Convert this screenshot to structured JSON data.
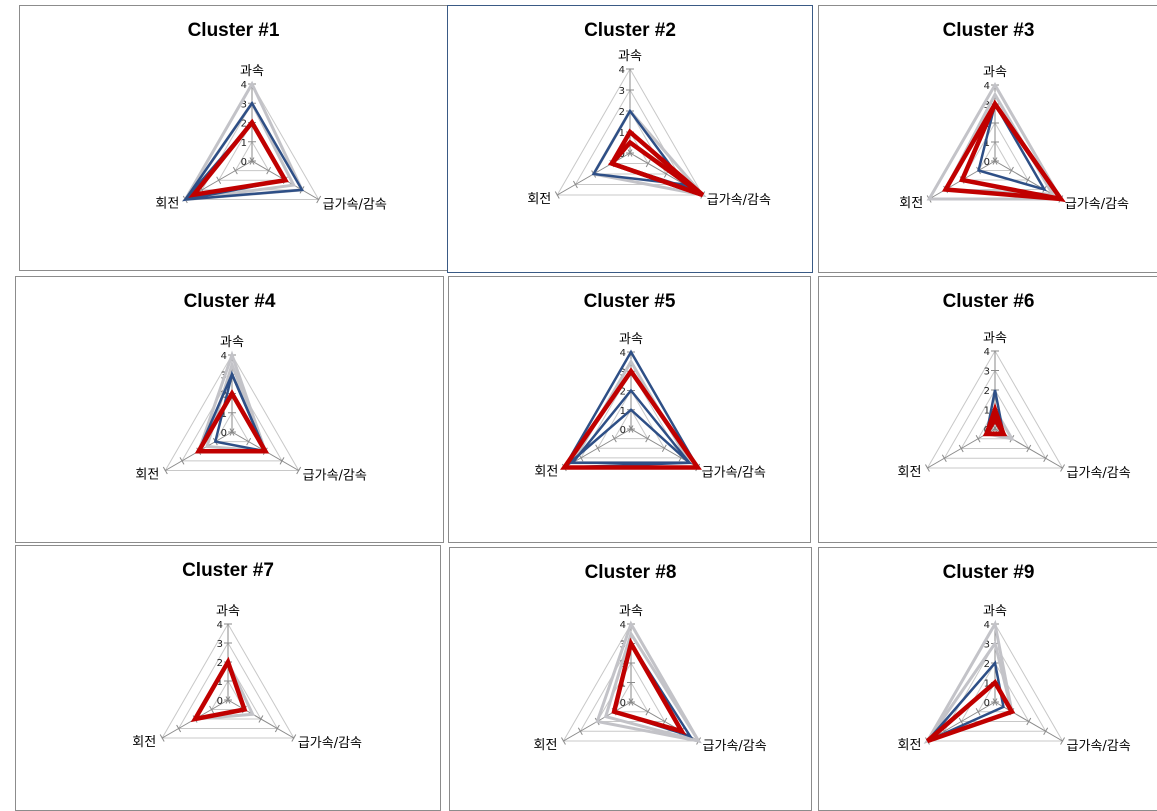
{
  "colors": {
    "gray": "#c3c3c8",
    "blue": "#2e4f86",
    "red": "#c00000"
  },
  "axes": [
    "과속",
    "급가속/감속",
    "회전"
  ],
  "ticks": [
    "0",
    "1",
    "2",
    "3",
    "4"
  ],
  "chart_data": [
    {
      "type": "radar",
      "title": "Cluster #1",
      "categories": [
        "과속",
        "급가속/감속",
        "회전"
      ],
      "range": [
        0,
        4
      ],
      "series": [
        {
          "color": "gray",
          "values": [
            4,
            3,
            4
          ]
        },
        {
          "color": "gray",
          "values": [
            3,
            2.5,
            4
          ]
        },
        {
          "color": "blue",
          "values": [
            3,
            3,
            4
          ]
        },
        {
          "color": "blue",
          "values": [
            2,
            2,
            4
          ]
        },
        {
          "color": "red",
          "values": [
            2,
            2,
            3.5
          ]
        }
      ]
    },
    {
      "type": "radar",
      "title": "Cluster #2",
      "categories": [
        "과속",
        "급가속/감속",
        "회전"
      ],
      "range": [
        0,
        4
      ],
      "series": [
        {
          "color": "gray",
          "values": [
            2,
            4,
            2
          ]
        },
        {
          "color": "gray",
          "values": [
            1,
            3.5,
            1
          ]
        },
        {
          "color": "blue",
          "values": [
            2,
            3,
            2
          ]
        },
        {
          "color": "blue",
          "values": [
            0.5,
            3.5,
            1
          ]
        },
        {
          "color": "red",
          "values": [
            1,
            4,
            1
          ]
        },
        {
          "color": "red",
          "values": [
            0.5,
            4,
            1
          ]
        }
      ]
    },
    {
      "type": "radar",
      "title": "Cluster #3",
      "categories": [
        "과속",
        "급가속/감속",
        "회전"
      ],
      "range": [
        0,
        4
      ],
      "series": [
        {
          "color": "gray",
          "values": [
            4,
            4,
            4
          ]
        },
        {
          "color": "gray",
          "values": [
            3.5,
            3.5,
            3
          ]
        },
        {
          "color": "blue",
          "values": [
            3,
            3,
            1
          ]
        },
        {
          "color": "red",
          "values": [
            3,
            4,
            3
          ]
        },
        {
          "color": "red",
          "values": [
            3,
            4,
            2
          ]
        }
      ]
    },
    {
      "type": "radar",
      "title": "Cluster #4",
      "categories": [
        "과속",
        "급가속/감속",
        "회전"
      ],
      "range": [
        0,
        4
      ],
      "series": [
        {
          "color": "gray",
          "values": [
            4,
            2,
            2
          ]
        },
        {
          "color": "gray",
          "values": [
            3.5,
            2,
            1.5
          ]
        },
        {
          "color": "blue",
          "values": [
            3,
            2,
            1
          ]
        },
        {
          "color": "blue",
          "values": [
            3,
            2,
            2
          ]
        },
        {
          "color": "red",
          "values": [
            2,
            2,
            2
          ]
        }
      ]
    },
    {
      "type": "radar",
      "title": "Cluster #5",
      "categories": [
        "과속",
        "급가속/감속",
        "회전"
      ],
      "range": [
        0,
        4
      ],
      "series": [
        {
          "color": "gray",
          "values": [
            3.5,
            3.5,
            3.5
          ]
        },
        {
          "color": "blue",
          "values": [
            4,
            4,
            4
          ]
        },
        {
          "color": "blue",
          "values": [
            2,
            3.5,
            3.5
          ]
        },
        {
          "color": "blue",
          "values": [
            1,
            3.5,
            4
          ]
        },
        {
          "color": "red",
          "values": [
            3,
            4,
            4
          ]
        }
      ]
    },
    {
      "type": "radar",
      "title": "Cluster #6",
      "categories": [
        "과속",
        "급가속/감속",
        "회전"
      ],
      "range": [
        0,
        4
      ],
      "series": [
        {
          "color": "gray",
          "values": [
            1,
            1,
            0.5
          ]
        },
        {
          "color": "blue",
          "values": [
            2,
            0.5,
            0.5
          ]
        },
        {
          "color": "red",
          "values": [
            1,
            0.5,
            0.5
          ]
        },
        {
          "color": "red",
          "values": [
            0.5,
            0.5,
            0.5
          ]
        }
      ]
    },
    {
      "type": "radar",
      "title": "Cluster #7",
      "categories": [
        "과속",
        "급가속/감속",
        "회전"
      ],
      "range": [
        0,
        4
      ],
      "series": [
        {
          "color": "gray",
          "values": [
            2,
            1.5,
            2
          ]
        },
        {
          "color": "red",
          "values": [
            2,
            1,
            2
          ]
        }
      ]
    },
    {
      "type": "radar",
      "title": "Cluster #8",
      "categories": [
        "과속",
        "급가속/감속",
        "회전"
      ],
      "range": [
        0,
        4
      ],
      "series": [
        {
          "color": "gray",
          "values": [
            4,
            4,
            2
          ]
        },
        {
          "color": "gray",
          "values": [
            3.5,
            4,
            1.5
          ]
        },
        {
          "color": "blue",
          "values": [
            3,
            3.5,
            1
          ]
        },
        {
          "color": "red",
          "values": [
            3,
            3,
            1
          ]
        }
      ]
    },
    {
      "type": "radar",
      "title": "Cluster #9",
      "categories": [
        "과속",
        "급가속/감속",
        "회전"
      ],
      "range": [
        0,
        4
      ],
      "series": [
        {
          "color": "gray",
          "values": [
            4,
            1,
            4
          ]
        },
        {
          "color": "gray",
          "values": [
            3,
            1,
            4
          ]
        },
        {
          "color": "blue",
          "values": [
            2,
            0.5,
            4
          ]
        },
        {
          "color": "red",
          "values": [
            1,
            1,
            4
          ]
        }
      ]
    }
  ]
}
